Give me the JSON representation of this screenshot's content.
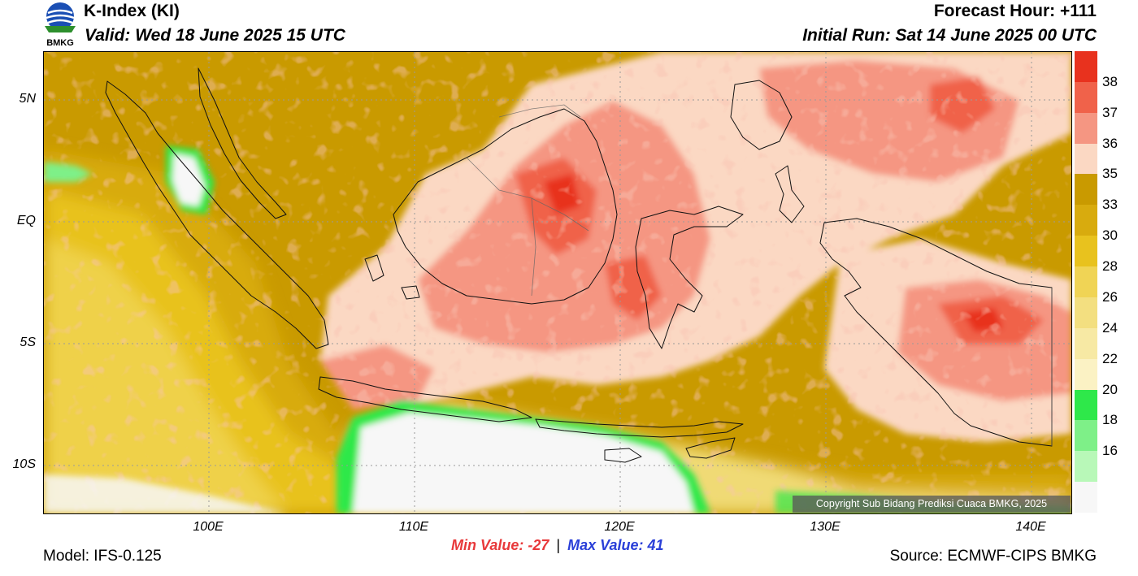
{
  "header": {
    "title": "K-Index (KI)",
    "valid": "Valid: Wed 18 June 2025 15 UTC",
    "forecast_hour": "Forecast Hour: +111",
    "initial_run": "Initial Run: Sat 14 June 2025 00 UTC",
    "logo_text": "BMKG"
  },
  "axes": {
    "lat_labels": [
      "5N",
      "EQ",
      "5S",
      "10S"
    ],
    "lon_labels": [
      "100E",
      "110E",
      "120E",
      "130E",
      "140E"
    ]
  },
  "colorbar": {
    "labels": [
      "38",
      "37",
      "36",
      "35",
      "33",
      "30",
      "28",
      "26",
      "24",
      "22",
      "20",
      "18",
      "16"
    ],
    "colors": [
      "#e8321e",
      "#f0624a",
      "#f59682",
      "#fbd8c3",
      "#c99a00",
      "#d8ab0e",
      "#e8c21e",
      "#f0d455",
      "#f3df80",
      "#f7e9a4",
      "#fbf2c4",
      "#2ee84a",
      "#7ef088",
      "#b8f8b8",
      "#f7f7f7"
    ]
  },
  "copyright": "Copyright Sub Bidang Prediksi Cuaca BMKG, 2025",
  "stats": {
    "min_label": "Min Value:",
    "min_value": "-27",
    "separator": "|",
    "max_label": "Max Value:",
    "max_value": "41"
  },
  "footer": {
    "model": "Model: IFS-0.125",
    "source": "Source: ECMWF-CIPS BMKG"
  }
}
